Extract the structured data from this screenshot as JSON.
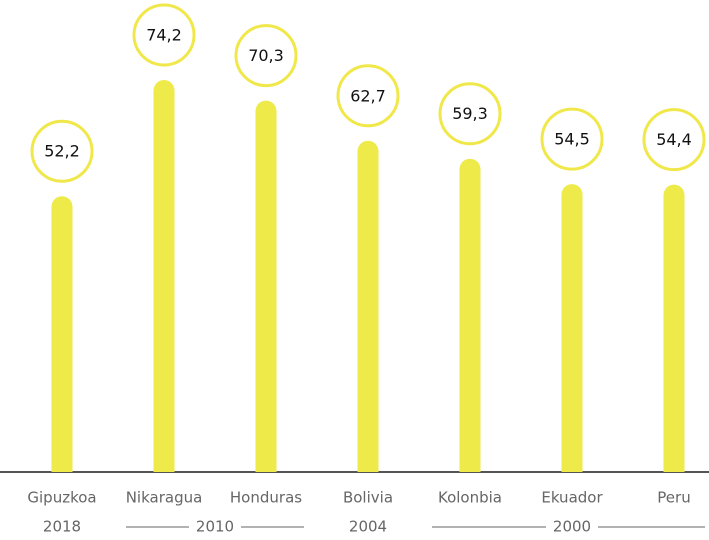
{
  "chart_data": {
    "type": "bar",
    "categories": [
      "Gipuzkoa",
      "Nikaragua",
      "Honduras",
      "Bolivia",
      "Kolonbia",
      "Ekuador",
      "Peru"
    ],
    "values": [
      52.2,
      74.2,
      70.3,
      62.7,
      59.3,
      54.5,
      54.4
    ],
    "value_labels": [
      "52,2",
      "74,2",
      "70,3",
      "62,7",
      "59,3",
      "54,5",
      "54,4"
    ],
    "x_groups": [
      "2018",
      "2010",
      "2010",
      "2004",
      "2000",
      "2000",
      "2000"
    ],
    "color": "#eeea4a"
  }
}
